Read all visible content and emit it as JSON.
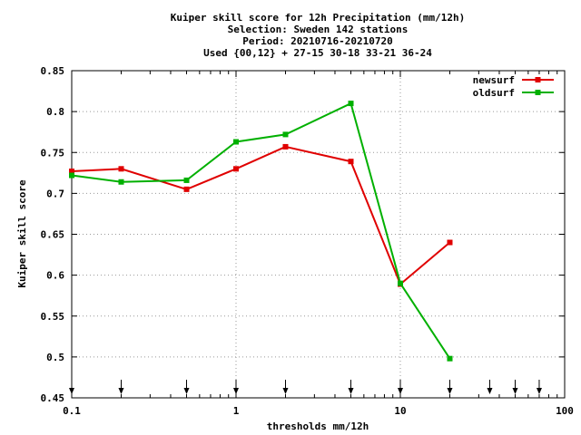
{
  "chart_data": {
    "type": "line",
    "title_lines": [
      "Kuiper skill score  for 12h Precipitation (mm/12h)",
      "Selection: Sweden    142 stations",
      "Period: 20210716-20210720",
      "Used {00,12} + 27-15 30-18 33-21 36-24"
    ],
    "xlabel": "thresholds mm/12h",
    "ylabel": "Kuiper skill score",
    "xscale": "log",
    "xlim": [
      0.1,
      100
    ],
    "ylim": [
      0.45,
      0.85
    ],
    "x_ticks": [
      0.1,
      1,
      10,
      100
    ],
    "x_tick_labels": [
      "0.1",
      "1",
      "10",
      "100"
    ],
    "y_ticks": [
      0.45,
      0.5,
      0.55,
      0.6,
      0.65,
      0.7,
      0.75,
      0.8,
      0.85
    ],
    "y_tick_labels": [
      "0.45",
      "0.5",
      "0.55",
      "0.6",
      "0.65",
      "0.7",
      "0.75",
      "0.8",
      "0.85"
    ],
    "grid": true,
    "legend_position": "top-right",
    "threshold_markers": [
      0.1,
      0.2,
      0.5,
      1,
      2,
      5,
      10,
      20,
      35,
      50,
      70
    ],
    "series": [
      {
        "name": "newsurf",
        "color": "#e00000",
        "x": [
          0.1,
          0.2,
          0.5,
          1,
          2,
          5,
          10,
          20
        ],
        "y": [
          0.727,
          0.73,
          0.705,
          0.73,
          0.757,
          0.739,
          0.589,
          0.64
        ]
      },
      {
        "name": "oldsurf",
        "color": "#00b000",
        "x": [
          0.1,
          0.2,
          0.5,
          1,
          2,
          5,
          10,
          20
        ],
        "y": [
          0.722,
          0.714,
          0.716,
          0.763,
          0.772,
          0.81,
          0.59,
          0.498
        ]
      }
    ]
  }
}
